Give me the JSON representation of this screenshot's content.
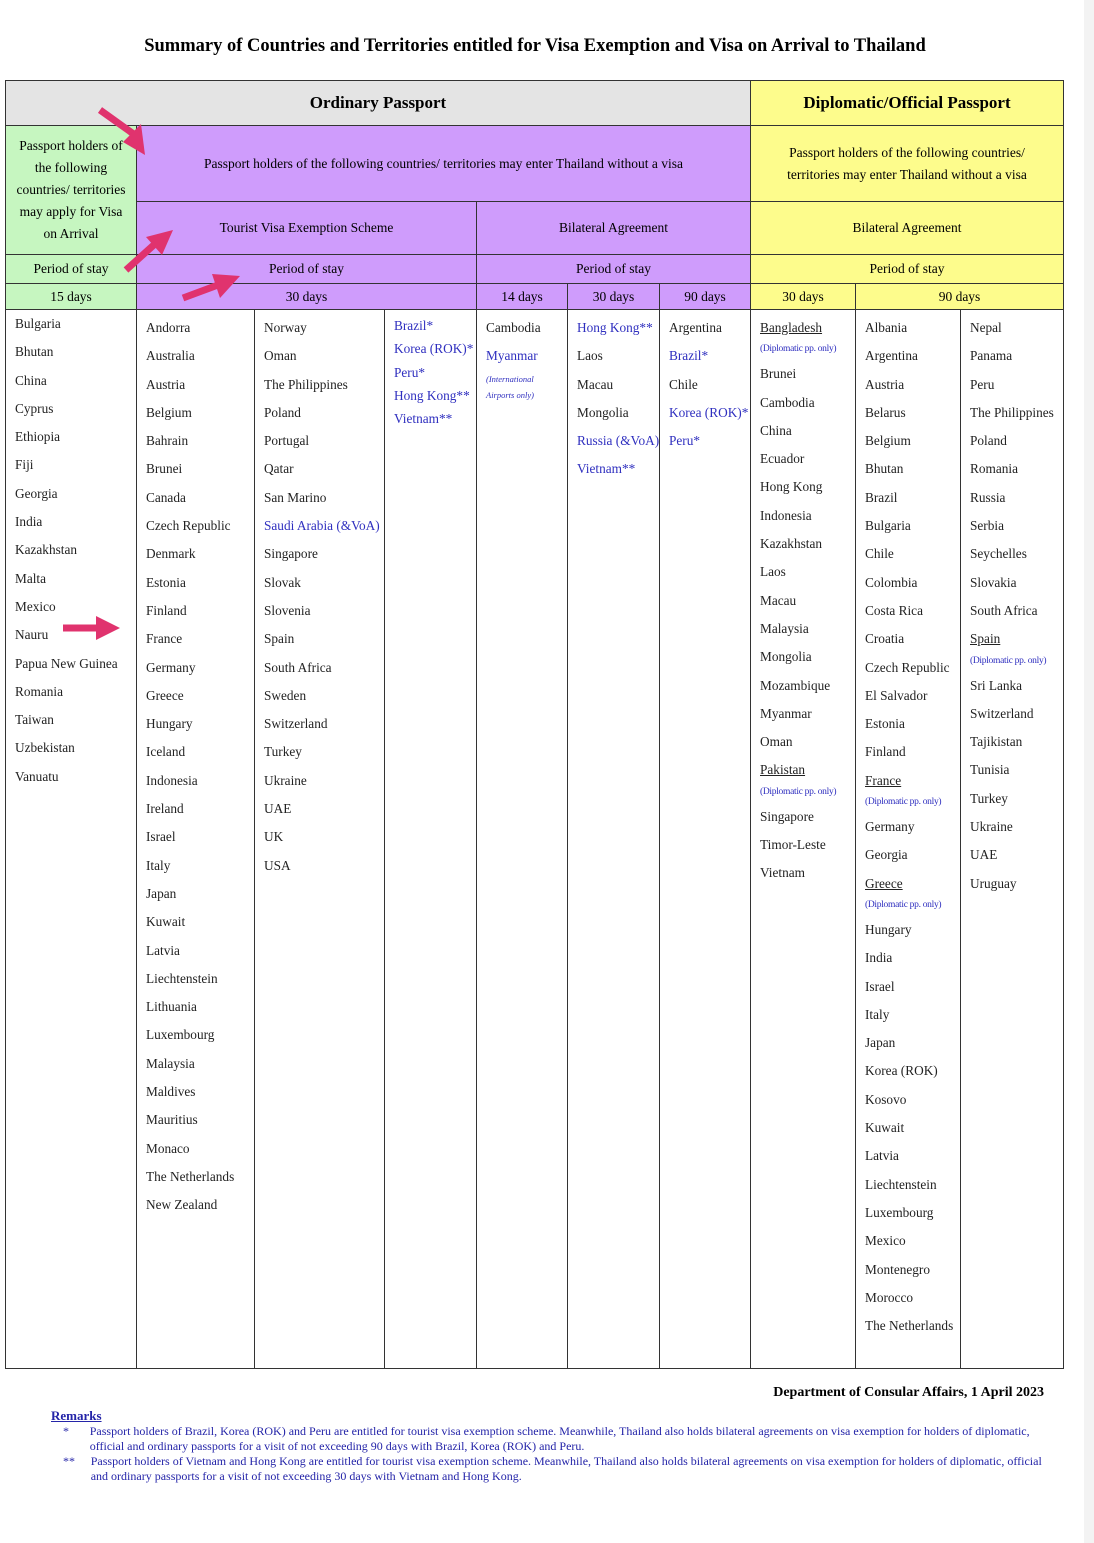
{
  "title": "Summary of Countries and Territories entitled for Visa Exemption and Visa on Arrival to Thailand",
  "headers": {
    "ordinary": "Ordinary Passport",
    "diplomatic": "Diplomatic/Official Passport",
    "voa_desc": "Passport holders of the following countries/ territories may apply for Visa on Arrival",
    "ord_desc": "Passport holders of the following countries/ territories may enter Thailand without a visa",
    "dip_desc": "Passport holders of the following countries/ territories may enter Thailand without a visa",
    "tourist": "Tourist Visa Exemption Scheme",
    "bilateral": "Bilateral Agreement",
    "dip_bilateral": "Bilateral Agreement",
    "period": "Period of stay",
    "d15": "15 days",
    "d30": "30 days",
    "d14": "14 days",
    "b30": "30 days",
    "b90": "90 days",
    "dip30": "30 days",
    "dip90": "90 days"
  },
  "columns": {
    "voa": [
      {
        "t": "Bulgaria"
      },
      {
        "t": "Bhutan"
      },
      {
        "t": "China"
      },
      {
        "t": "Cyprus"
      },
      {
        "t": "Ethiopia"
      },
      {
        "t": "Fiji"
      },
      {
        "t": "Georgia"
      },
      {
        "t": "India"
      },
      {
        "t": "Kazakhstan"
      },
      {
        "t": "Malta"
      },
      {
        "t": "Mexico"
      },
      {
        "t": "Nauru"
      },
      {
        "t": "Papua New Guinea"
      },
      {
        "t": "Romania"
      },
      {
        "t": "Taiwan"
      },
      {
        "t": "Uzbekistan"
      },
      {
        "t": "Vanuatu"
      }
    ],
    "tourist_a": [
      {
        "t": "Andorra"
      },
      {
        "t": "Australia"
      },
      {
        "t": "Austria"
      },
      {
        "t": "Belgium"
      },
      {
        "t": "Bahrain"
      },
      {
        "t": "Brunei"
      },
      {
        "t": "Canada"
      },
      {
        "t": "Czech Republic"
      },
      {
        "t": "Denmark"
      },
      {
        "t": "Estonia"
      },
      {
        "t": "Finland"
      },
      {
        "t": "France"
      },
      {
        "t": "Germany"
      },
      {
        "t": "Greece"
      },
      {
        "t": "Hungary"
      },
      {
        "t": "Iceland"
      },
      {
        "t": "Indonesia"
      },
      {
        "t": "Ireland"
      },
      {
        "t": "Israel"
      },
      {
        "t": "Italy"
      },
      {
        "t": "Japan"
      },
      {
        "t": "Kuwait"
      },
      {
        "t": "Latvia"
      },
      {
        "t": "Liechtenstein"
      },
      {
        "t": "Lithuania"
      },
      {
        "t": "Luxembourg"
      },
      {
        "t": "Malaysia"
      },
      {
        "t": "Maldives"
      },
      {
        "t": "Mauritius"
      },
      {
        "t": "Monaco"
      },
      {
        "t": "The Netherlands"
      },
      {
        "t": "New Zealand"
      }
    ],
    "tourist_b": [
      {
        "t": "Norway"
      },
      {
        "t": "Oman"
      },
      {
        "t": "The Philippines"
      },
      {
        "t": "Poland"
      },
      {
        "t": "Portugal"
      },
      {
        "t": "Qatar"
      },
      {
        "t": "San Marino"
      },
      {
        "t": "Saudi Arabia (&VoA)",
        "s": "blue"
      },
      {
        "t": "Singapore"
      },
      {
        "t": "Slovak"
      },
      {
        "t": "Slovenia"
      },
      {
        "t": "Spain"
      },
      {
        "t": "South Africa"
      },
      {
        "t": "Sweden"
      },
      {
        "t": "Switzerland"
      },
      {
        "t": "Turkey"
      },
      {
        "t": "Ukraine"
      },
      {
        "t": "UAE"
      },
      {
        "t": "UK"
      },
      {
        "t": "USA"
      }
    ],
    "tourist_c": [
      {
        "t": "Brazil*",
        "s": "blue"
      },
      {
        "t": "Korea (ROK)*",
        "s": "blue"
      },
      {
        "t": "Peru*",
        "s": "blue"
      },
      {
        "t": "Hong Kong**",
        "s": "blue"
      },
      {
        "t": "Vietnam**",
        "s": "blue"
      }
    ],
    "bil14": [
      {
        "t": "Cambodia"
      },
      {
        "t": "Myanmar",
        "s": "blue"
      },
      {
        "t": "(International",
        "s": "inote"
      },
      {
        "t": "Airports only)",
        "s": "inote"
      }
    ],
    "bil30": [
      {
        "t": "Hong Kong**",
        "s": "blue"
      },
      {
        "t": "Laos"
      },
      {
        "t": "Macau"
      },
      {
        "t": "Mongolia"
      },
      {
        "t": "Russia (&VoA)",
        "s": "blue"
      },
      {
        "t": "Vietnam**",
        "s": "blue"
      }
    ],
    "bil90": [
      {
        "t": "Argentina"
      },
      {
        "t": "Brazil*",
        "s": "blue"
      },
      {
        "t": "Chile"
      },
      {
        "t": "Korea (ROK)*",
        "s": "blue"
      },
      {
        "t": "Peru*",
        "s": "blue"
      }
    ],
    "dip30": [
      {
        "t": "Bangladesh",
        "s": "underline"
      },
      {
        "t": "(Diplomatic pp. only)",
        "s": "note"
      },
      {
        "t": "Brunei"
      },
      {
        "t": "Cambodia"
      },
      {
        "t": "China"
      },
      {
        "t": "Ecuador"
      },
      {
        "t": "Hong Kong"
      },
      {
        "t": "Indonesia"
      },
      {
        "t": "Kazakhstan"
      },
      {
        "t": "Laos"
      },
      {
        "t": "Macau"
      },
      {
        "t": "Malaysia"
      },
      {
        "t": "Mongolia"
      },
      {
        "t": "Mozambique"
      },
      {
        "t": "Myanmar"
      },
      {
        "t": "Oman"
      },
      {
        "t": "Pakistan",
        "s": "underline"
      },
      {
        "t": "(Diplomatic pp. only)",
        "s": "note"
      },
      {
        "t": "Singapore"
      },
      {
        "t": "Timor-Leste"
      },
      {
        "t": "Vietnam"
      }
    ],
    "dip90a": [
      {
        "t": "Albania"
      },
      {
        "t": "Argentina"
      },
      {
        "t": "Austria"
      },
      {
        "t": "Belarus"
      },
      {
        "t": "Belgium"
      },
      {
        "t": "Bhutan"
      },
      {
        "t": "Brazil"
      },
      {
        "t": "Bulgaria"
      },
      {
        "t": "Chile"
      },
      {
        "t": "Colombia"
      },
      {
        "t": "Costa Rica"
      },
      {
        "t": "Croatia"
      },
      {
        "t": "Czech Republic"
      },
      {
        "t": "El Salvador"
      },
      {
        "t": "Estonia"
      },
      {
        "t": "Finland"
      },
      {
        "t": "France",
        "s": "underline"
      },
      {
        "t": "(Diplomatic pp. only)",
        "s": "note"
      },
      {
        "t": "Germany"
      },
      {
        "t": "Georgia"
      },
      {
        "t": "Greece",
        "s": "underline"
      },
      {
        "t": "(Diplomatic pp. only)",
        "s": "note"
      },
      {
        "t": "Hungary"
      },
      {
        "t": "India"
      },
      {
        "t": "Israel"
      },
      {
        "t": "Italy"
      },
      {
        "t": "Japan"
      },
      {
        "t": "Korea (ROK)"
      },
      {
        "t": "Kosovo"
      },
      {
        "t": "Kuwait"
      },
      {
        "t": "Latvia"
      },
      {
        "t": "Liechtenstein"
      },
      {
        "t": "Luxembourg"
      },
      {
        "t": "Mexico"
      },
      {
        "t": "Montenegro"
      },
      {
        "t": "Morocco"
      },
      {
        "t": "The Netherlands"
      }
    ],
    "dip90b": [
      {
        "t": "Nepal"
      },
      {
        "t": "Panama"
      },
      {
        "t": "Peru"
      },
      {
        "t": "The Philippines"
      },
      {
        "t": "Poland"
      },
      {
        "t": "Romania"
      },
      {
        "t": "Russia"
      },
      {
        "t": "Serbia"
      },
      {
        "t": "Seychelles"
      },
      {
        "t": "Slovakia"
      },
      {
        "t": "South Africa"
      },
      {
        "t": "Spain",
        "s": "underline"
      },
      {
        "t": "(Diplomatic pp. only)",
        "s": "note"
      },
      {
        "t": "Sri Lanka"
      },
      {
        "t": "Switzerland"
      },
      {
        "t": "Tajikistan"
      },
      {
        "t": "Tunisia"
      },
      {
        "t": "Turkey"
      },
      {
        "t": "Ukraine"
      },
      {
        "t": "UAE"
      },
      {
        "t": "Uruguay"
      }
    ]
  },
  "footer": {
    "dept": "Department of Consular Affairs, 1 April  2023",
    "remarks_title": "Remarks",
    "remarks": [
      {
        "mark": "*",
        "text": "Passport holders of Brazil, Korea (ROK) and Peru are entitled for tourist visa exemption scheme. Meanwhile, Thailand also holds bilateral agreements on visa exemption for holders of diplomatic, official and ordinary passports for a visit of not exceeding 90 days with Brazil, Korea (ROK) and Peru."
      },
      {
        "mark": "**",
        "text": "Passport holders of Vietnam and Hong Kong are entitled for tourist visa exemption scheme. Meanwhile, Thailand also holds bilateral agreements on visa exemption for holders of diplomatic, official and ordinary passports for a visit of not exceeding 30 days with Vietnam and Hong Kong."
      }
    ]
  },
  "colors": {
    "ordinary_header": "#e4e4e4",
    "diplomatic": "#fdfc8c",
    "visa_exempt": "#cf9cfc",
    "voa": "#c6f6c0",
    "link_text": "#2f2fbf",
    "arrow": "#e0336e"
  }
}
